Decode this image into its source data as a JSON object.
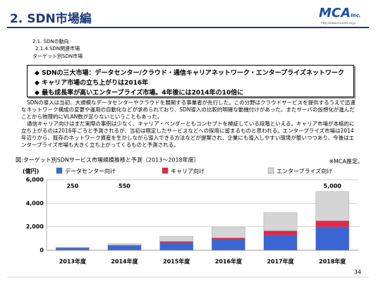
{
  "header": {
    "title": "2. SDN市場編"
  },
  "logo": {
    "name": "MCA",
    "suffix": "Inc.",
    "url": "http://www.mcanet.co.jp"
  },
  "breadcrumbs": [
    "2.1. SDNの動向",
    "2.1.4.SDN関連市場",
    "ターゲット別SDN市場"
  ],
  "highlights": [
    "SDNの三大市場：データセンター/クラウド・通信キャリアネットワーク・エンタープライズネットワーク",
    "キャリア市場の立ち上がりは2016年",
    "最も成長率が高いエンタープライズ市場。4年後には2014年の10倍に"
  ],
  "paragraphs": [
    "SDNの導入は当初、大規模なデータセンターやクラウドを展開する事業者が先行した。この分野はクラウドサービスを提供するうえで迅速なネットワーク構成の変更や運用の自動化などが求められており、SDN導入の比較的明確な動機付けがあった。またサーバの仮想化が進んだことから物理的にVLAN数が足りないということもあった。",
    "通信キャリア向けはまだ実際の事例は少なく、キャリア・ベンダーともコンセプトを検証している段階といえる。キャリア市場が本格的に立ち上がるのは2016年ごろと予測されるが、当初は限定したサービスなどへの採用に留まるものと思われる。エンタープライズ市場は2014年辺りから、既存のネットワーク資産を生かしながら導入できる方法などが提案され、企業にも導入しやすい環境が整いつつあり、今後はエンタープライズ市場も大きく立ち上がってくるものと予測される。"
  ],
  "page_number": "34",
  "chart_data": {
    "type": "stacked_bar",
    "title": "図:ターゲット別SDNサービス市場規模推移と予測（2013～2018年度）",
    "note": "※MCA推定。",
    "y_label": "(億円)",
    "categories": [
      "2013年度",
      "2014年度",
      "2015年度",
      "2016年度",
      "2017年度",
      "2018年度"
    ],
    "series": [
      {
        "name": "データセンター向け",
        "color": "#3a66d4",
        "values": [
          200,
          400,
          650,
          900,
          1300,
          2000
        ]
      },
      {
        "name": "キャリア向け",
        "color": "#e8254a",
        "values": [
          10,
          30,
          100,
          150,
          350,
          500
        ]
      },
      {
        "name": "エンタープライズ向け",
        "color": "#d4d4d4",
        "values": [
          40,
          120,
          450,
          900,
          1550,
          2500
        ]
      }
    ],
    "totals": [
      250,
      550,
      null,
      null,
      null,
      {
        "value": 5000,
        "label": "5,000"
      }
    ],
    "ylim": [
      0,
      6000
    ],
    "yticks": [
      0,
      {
        "value": 2000,
        "label": "2,000"
      },
      {
        "value": 4000,
        "label": "4,000"
      },
      {
        "value": 6000,
        "label": "6,000"
      }
    ],
    "grid": true
  }
}
